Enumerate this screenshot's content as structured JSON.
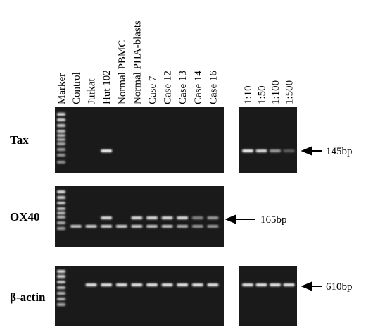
{
  "lanes": [
    "Marker",
    "Control",
    "Jurkat",
    "Hut 102",
    "Normal PBMC",
    "Normal PHA-blasts",
    "Case 7",
    "Case 12",
    "Case 13",
    "Case 14",
    "Case 16"
  ],
  "dilutions": [
    "1:10",
    "1:50",
    "1:100",
    "1:500"
  ],
  "rows": [
    {
      "label": "Tax",
      "size": "145bp"
    },
    {
      "label": "OX40",
      "size": "165bp"
    },
    {
      "label": "β-actin",
      "size": "610bp"
    }
  ]
}
